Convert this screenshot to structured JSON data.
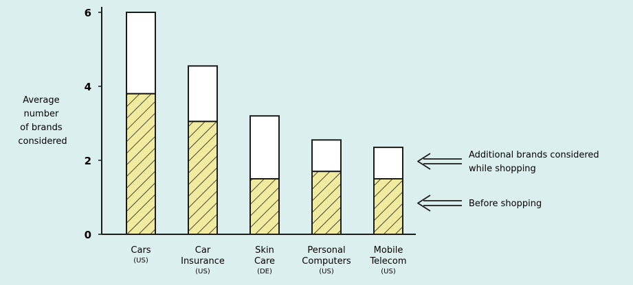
{
  "chart_data": {
    "type": "bar",
    "stacked": true,
    "categories": [
      {
        "name": [
          "Cars"
        ],
        "region": "(US)"
      },
      {
        "name": [
          "Car",
          "Insurance"
        ],
        "region": "(US)"
      },
      {
        "name": [
          "Skin",
          "Care"
        ],
        "region": "(DE)"
      },
      {
        "name": [
          "Personal",
          "Computers"
        ],
        "region": "(US)"
      },
      {
        "name": [
          "Mobile",
          "Telecom"
        ],
        "region": "(US)"
      }
    ],
    "series": [
      {
        "name": "Before shopping",
        "values": [
          3.8,
          3.05,
          1.5,
          1.7,
          1.5
        ],
        "fill": "#f1eba0",
        "pattern": "hatch"
      },
      {
        "name": "Additional brands considered while shopping",
        "values": [
          2.2,
          1.5,
          1.7,
          0.85,
          0.85
        ],
        "fill": "#ffffff",
        "pattern": "none"
      }
    ],
    "ylabel": [
      "Average",
      "number",
      "of brands",
      "considered"
    ],
    "ylim": [
      0,
      6
    ],
    "yticks": [
      "0",
      "2",
      "4",
      "6"
    ],
    "legend": {
      "placement": "right",
      "items": [
        {
          "lines": [
            "Additional brands considered",
            "while shopping"
          ],
          "series": 1
        },
        {
          "lines": [
            "Before shopping"
          ],
          "series": 0
        }
      ]
    },
    "grid": false
  },
  "colors": {
    "background": "#dcefef",
    "before_fill": "#f1eba0",
    "ink": "#1a1a1a"
  }
}
